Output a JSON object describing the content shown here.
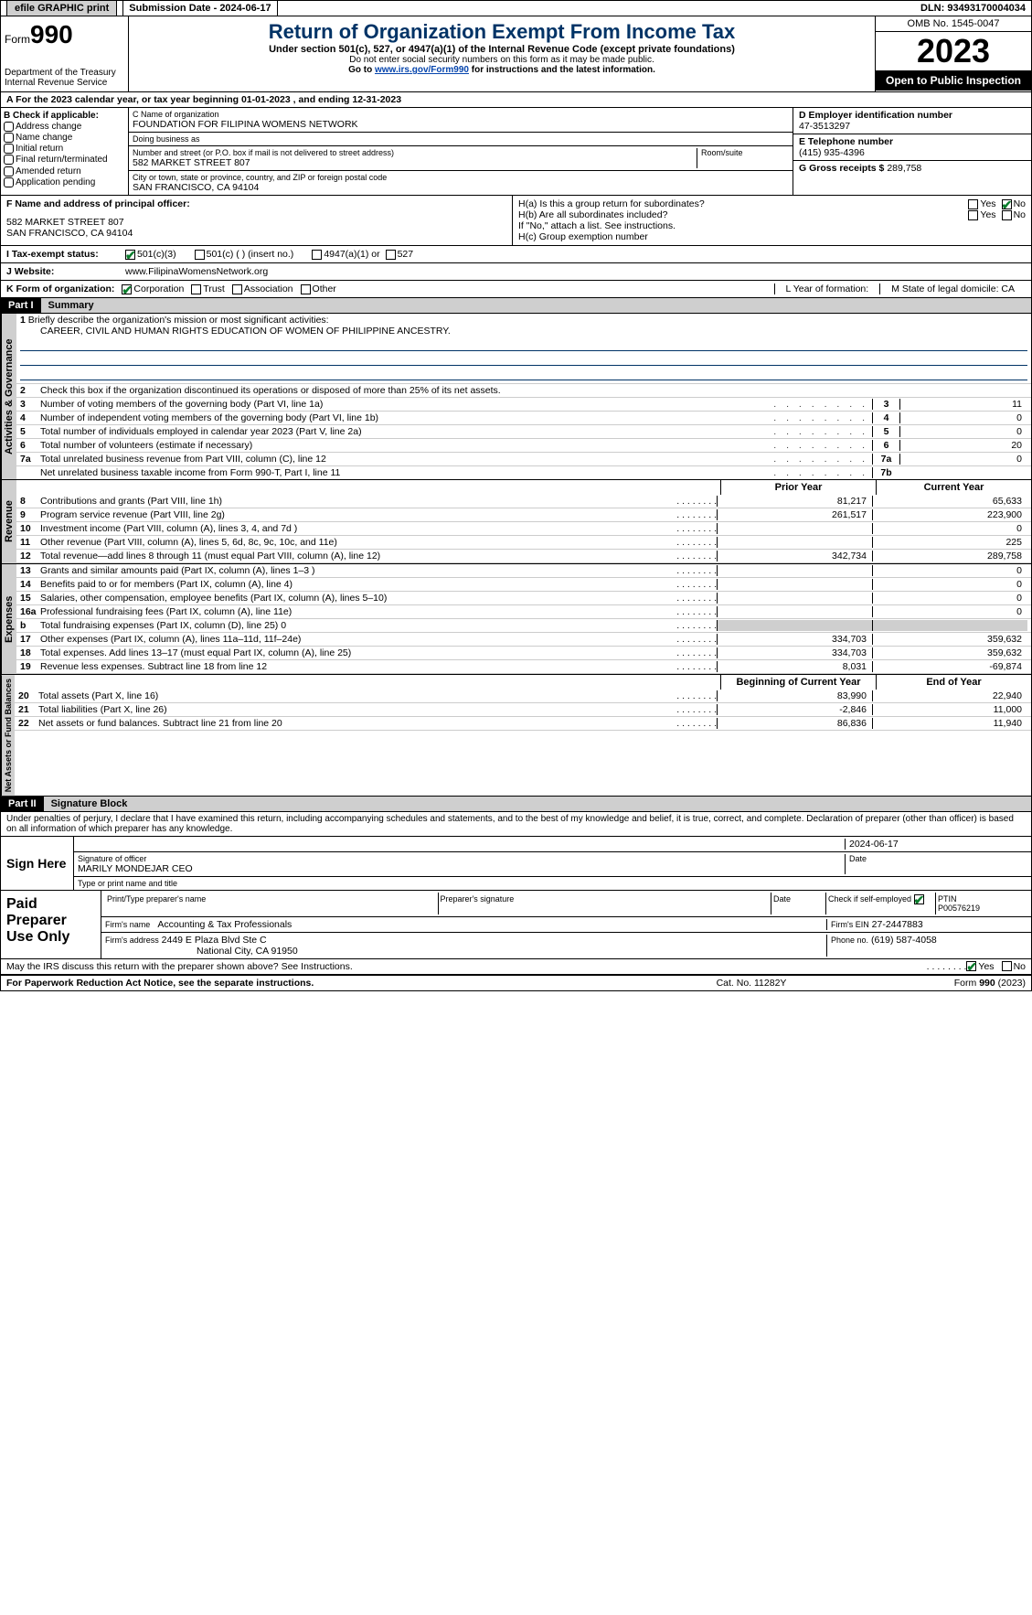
{
  "top": {
    "efile": "efile GRAPHIC print",
    "submission_label": "Submission Date - 2024-06-17",
    "dln": "DLN: 93493170004034"
  },
  "header": {
    "form_word": "Form",
    "form_num": "990",
    "title": "Return of Organization Exempt From Income Tax",
    "subtitle": "Under section 501(c), 527, or 4947(a)(1) of the Internal Revenue Code (except private foundations)",
    "note1": "Do not enter social security numbers on this form as it may be made public.",
    "note2_prefix": "Go to ",
    "note2_link": "www.irs.gov/Form990",
    "note2_suffix": " for instructions and the latest information.",
    "dept": "Department of the Treasury\nInternal Revenue Service",
    "omb": "OMB No. 1545-0047",
    "year": "2023",
    "inspect": "Open to Public Inspection"
  },
  "period": {
    "text_a": "A For the 2023 calendar year, or tax year beginning ",
    "begin": "01-01-2023",
    "mid": " , and ending ",
    "end": "12-31-2023"
  },
  "boxB": {
    "label": "B Check if applicable:",
    "opts": [
      "Address change",
      "Name change",
      "Initial return",
      "Final return/terminated",
      "Amended return",
      "Application pending"
    ]
  },
  "boxC": {
    "name_lbl": "C Name of organization",
    "name": "FOUNDATION FOR FILIPINA WOMENS NETWORK",
    "dba_lbl": "Doing business as",
    "dba": "",
    "addr_lbl": "Number and street (or P.O. box if mail is not delivered to street address)",
    "room_lbl": "Room/suite",
    "addr": "582 MARKET STREET 807",
    "city_lbl": "City or town, state or province, country, and ZIP or foreign postal code",
    "city": "SAN FRANCISCO, CA  94104"
  },
  "boxD": {
    "lbl": "D Employer identification number",
    "val": "47-3513297"
  },
  "boxE": {
    "lbl": "E Telephone number",
    "val": "(415) 935-4396"
  },
  "boxG": {
    "lbl": "G Gross receipts $",
    "val": "289,758"
  },
  "boxF": {
    "lbl": "F  Name and address of principal officer:",
    "line1": "582 MARKET STREET 807",
    "line2": "SAN FRANCISCO, CA  94104"
  },
  "boxH": {
    "a": "H(a)  Is this a group return for subordinates?",
    "b": "H(b)  Are all subordinates included?",
    "note": "If \"No,\" attach a list. See instructions.",
    "c": "H(c)  Group exemption number",
    "yes": "Yes",
    "no": "No"
  },
  "statusI": {
    "lbl": "I   Tax-exempt status:",
    "o1": "501(c)(3)",
    "o2": "501(c) (  ) (insert no.)",
    "o3": "4947(a)(1) or",
    "o4": "527"
  },
  "website": {
    "lbl": "J   Website:",
    "val": "www.FilipinaWomensNetwork.org"
  },
  "korg": {
    "lbl": "K Form of organization:",
    "opts": [
      "Corporation",
      "Trust",
      "Association",
      "Other"
    ],
    "L": "L Year of formation:",
    "M": "M State of legal domicile: CA"
  },
  "part1": {
    "hdr": "Part I",
    "title": "Summary"
  },
  "mission": {
    "q": "Briefly describe the organization's mission or most significant activities:",
    "text": "CAREER, CIVIL AND HUMAN RIGHTS EDUCATION OF WOMEN OF PHILIPPINE ANCESTRY."
  },
  "gov_lines": {
    "l2": "Check this box       if the organization discontinued its operations or disposed of more than 25% of its net assets.",
    "l3": {
      "d": "Number of voting members of the governing body (Part VI, line 1a)",
      "n": "3",
      "v": "11"
    },
    "l4": {
      "d": "Number of independent voting members of the governing body (Part VI, line 1b)",
      "n": "4",
      "v": "0"
    },
    "l5": {
      "d": "Total number of individuals employed in calendar year 2023 (Part V, line 2a)",
      "n": "5",
      "v": "0"
    },
    "l6": {
      "d": "Total number of volunteers (estimate if necessary)",
      "n": "6",
      "v": "20"
    },
    "l7a": {
      "d": "Total unrelated business revenue from Part VIII, column (C), line 12",
      "n": "7a",
      "v": "0"
    },
    "l7b": {
      "d": "Net unrelated business taxable income from Form 990-T, Part I, line 11",
      "n": "7b",
      "v": ""
    }
  },
  "rev_hdr": {
    "prior": "Prior Year",
    "curr": "Current Year"
  },
  "revenue": [
    {
      "n": "8",
      "d": "Contributions and grants (Part VIII, line 1h)",
      "p": "81,217",
      "c": "65,633"
    },
    {
      "n": "9",
      "d": "Program service revenue (Part VIII, line 2g)",
      "p": "261,517",
      "c": "223,900"
    },
    {
      "n": "10",
      "d": "Investment income (Part VIII, column (A), lines 3, 4, and 7d )",
      "p": "",
      "c": "0"
    },
    {
      "n": "11",
      "d": "Other revenue (Part VIII, column (A), lines 5, 6d, 8c, 9c, 10c, and 11e)",
      "p": "",
      "c": "225"
    },
    {
      "n": "12",
      "d": "Total revenue—add lines 8 through 11 (must equal Part VIII, column (A), line 12)",
      "p": "342,734",
      "c": "289,758"
    }
  ],
  "expenses": [
    {
      "n": "13",
      "d": "Grants and similar amounts paid (Part IX, column (A), lines 1–3 )",
      "p": "",
      "c": "0"
    },
    {
      "n": "14",
      "d": "Benefits paid to or for members (Part IX, column (A), line 4)",
      "p": "",
      "c": "0"
    },
    {
      "n": "15",
      "d": "Salaries, other compensation, employee benefits (Part IX, column (A), lines 5–10)",
      "p": "",
      "c": "0"
    },
    {
      "n": "16a",
      "d": "Professional fundraising fees (Part IX, column (A), line 11e)",
      "p": "",
      "c": "0"
    },
    {
      "n": "b",
      "d": "Total fundraising expenses (Part IX, column (D), line 25) 0",
      "p": "grey",
      "c": "grey"
    },
    {
      "n": "17",
      "d": "Other expenses (Part IX, column (A), lines 11a–11d, 11f–24e)",
      "p": "334,703",
      "c": "359,632"
    },
    {
      "n": "18",
      "d": "Total expenses. Add lines 13–17 (must equal Part IX, column (A), line 25)",
      "p": "334,703",
      "c": "359,632"
    },
    {
      "n": "19",
      "d": "Revenue less expenses. Subtract line 18 from line 12",
      "p": "8,031",
      "c": "-69,874"
    }
  ],
  "net_hdr": {
    "begin": "Beginning of Current Year",
    "end": "End of Year"
  },
  "net": [
    {
      "n": "20",
      "d": "Total assets (Part X, line 16)",
      "p": "83,990",
      "c": "22,940"
    },
    {
      "n": "21",
      "d": "Total liabilities (Part X, line 26)",
      "p": "-2,846",
      "c": "11,000"
    },
    {
      "n": "22",
      "d": "Net assets or fund balances. Subtract line 21 from line 20",
      "p": "86,836",
      "c": "11,940"
    }
  ],
  "part2": {
    "hdr": "Part II",
    "title": "Signature Block"
  },
  "perjury": "Under penalties of perjury, I declare that I have examined this return, including accompanying schedules and statements, and to the best of my knowledge and belief, it is true, correct, and complete. Declaration of preparer (other than officer) is based on all information of which preparer has any knowledge.",
  "sign": {
    "here": "Sign Here",
    "sig_lbl": "Signature of officer",
    "date_lbl": "Date",
    "date": "2024-06-17",
    "name": "MARILY MONDEJAR  CEO",
    "name_lbl": "Type or print name and title"
  },
  "prep": {
    "lbl": "Paid Preparer Use Only",
    "h1": "Print/Type preparer's name",
    "h2": "Preparer's signature",
    "h3": "Date",
    "h4": "Check         if self-employed",
    "h5": "PTIN",
    "ptin": "P00576219",
    "firm_name_lbl": "Firm's name",
    "firm_name": "Accounting & Tax Professionals",
    "firm_ein_lbl": "Firm's EIN",
    "firm_ein": "27-2447883",
    "firm_addr_lbl": "Firm's address",
    "firm_addr1": "2449 E Plaza Blvd Ste C",
    "firm_addr2": "National City, CA  91950",
    "phone_lbl": "Phone no.",
    "phone": "(619) 587-4058"
  },
  "discuss": {
    "q": "May the IRS discuss this return with the preparer shown above? See Instructions.",
    "yes": "Yes",
    "no": "No"
  },
  "footer": {
    "left": "For Paperwork Reduction Act Notice, see the separate instructions.",
    "mid": "Cat. No. 11282Y",
    "right": "Form 990 (2023)"
  },
  "side_labels": {
    "gov": "Activities & Governance",
    "rev": "Revenue",
    "exp": "Expenses",
    "net": "Net Assets or Fund Balances"
  },
  "dots": ".   .   .   .   .   .   .   ."
}
